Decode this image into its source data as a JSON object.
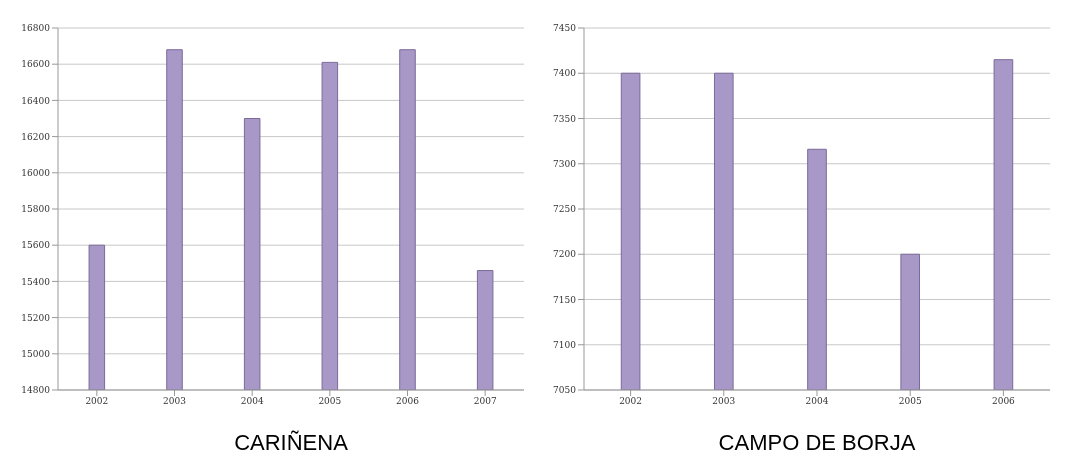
{
  "chart_data": [
    {
      "type": "bar",
      "xlabel": "CARIÑENA",
      "categories": [
        "2002",
        "2003",
        "2004",
        "2005",
        "2006",
        "2007"
      ],
      "values": [
        15600,
        16680,
        16300,
        16610,
        16680,
        15460
      ],
      "color": "#a898c8",
      "ylim": [
        14800,
        16800
      ],
      "yticks": [
        14800,
        15000,
        15200,
        15400,
        15600,
        15800,
        16000,
        16200,
        16400,
        16600,
        16800
      ],
      "grid": "y"
    },
    {
      "type": "bar",
      "xlabel": "CAMPO DE BORJA",
      "categories": [
        "2002",
        "2003",
        "2004",
        "2005",
        "2006"
      ],
      "values": [
        7400,
        7400,
        7316,
        7200,
        7415
      ],
      "color": "#a898c8",
      "ylim": [
        7050,
        7450
      ],
      "yticks": [
        7050,
        7100,
        7150,
        7200,
        7250,
        7300,
        7350,
        7400,
        7450
      ],
      "grid": "y"
    }
  ]
}
